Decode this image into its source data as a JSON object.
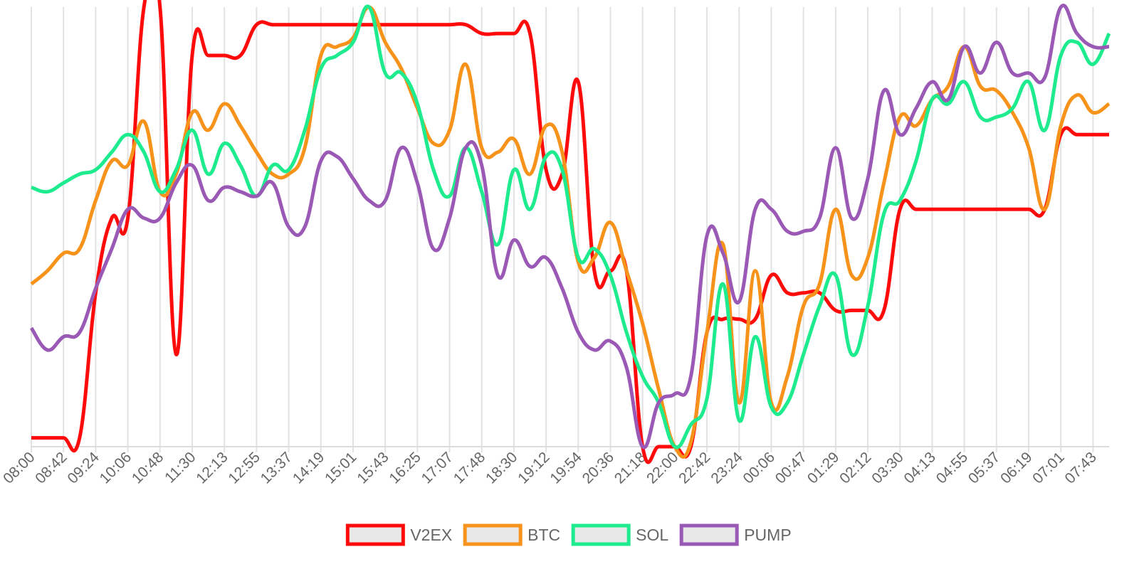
{
  "chart_data": {
    "type": "line",
    "categories": [
      "08:00",
      null,
      "08:42",
      null,
      "09:24",
      null,
      "10:06",
      null,
      "10:48",
      null,
      "11:30",
      null,
      "12:13",
      null,
      "12:55",
      null,
      "13:37",
      null,
      "14:19",
      null,
      "15:01",
      null,
      "15:43",
      null,
      "16:25",
      null,
      "17:07",
      null,
      "17:48",
      null,
      "18:30",
      null,
      "19:12",
      null,
      "19:54",
      null,
      "20:36",
      null,
      "21:18",
      null,
      "22:00",
      null,
      "22:42",
      null,
      "23:24",
      null,
      "00:06",
      null,
      "00:47",
      null,
      "01:29",
      null,
      "02:12",
      null,
      "03:30",
      null,
      "04:13",
      null,
      "04:55",
      null,
      "05:37",
      null,
      "06:19",
      null,
      "07:01",
      null,
      "07:43",
      null
    ],
    "ylim": [
      0,
      100
    ],
    "grid": true,
    "legend": "bottom",
    "series": [
      {
        "name": "V2EX",
        "color": "#ff0a0a",
        "values": [
          2,
          2,
          2,
          2,
          35,
          52,
          52,
          100,
          100,
          21,
          89,
          89,
          89,
          89,
          96,
          96,
          96,
          96,
          96,
          96,
          96,
          96,
          96,
          96,
          96,
          96,
          96,
          96,
          94,
          94,
          94,
          94,
          63,
          62,
          83,
          40,
          40,
          40,
          0,
          0,
          0,
          0,
          26,
          29,
          29,
          29,
          39,
          35,
          35,
          35,
          31,
          31,
          31,
          31,
          54,
          54,
          54,
          54,
          54,
          54,
          54,
          54,
          54,
          54,
          71,
          71,
          71,
          71
        ]
      },
      {
        "name": "BTC",
        "color": "#f7931a",
        "values": [
          37,
          40,
          44,
          45,
          56,
          65,
          64,
          74,
          58,
          62,
          76,
          72,
          78,
          73,
          67,
          62,
          62,
          68,
          89,
          91,
          93,
          100,
          92,
          86,
          77,
          69,
          72,
          87,
          68,
          67,
          70,
          62,
          73,
          67,
          42,
          43,
          51,
          40,
          28,
          13,
          0,
          1,
          26,
          46,
          10,
          40,
          10,
          16,
          32,
          37,
          54,
          39,
          43,
          60,
          75,
          73,
          79,
          82,
          91,
          82,
          81,
          76,
          68,
          54,
          73,
          80,
          76,
          78
        ]
      },
      {
        "name": "SOL",
        "color": "#1deb8e",
        "values": [
          59,
          58,
          60,
          62,
          63,
          67,
          71,
          67,
          58,
          63,
          72,
          62,
          69,
          64,
          57,
          64,
          63,
          72,
          86,
          89,
          92,
          100,
          85,
          85,
          78,
          63,
          57,
          68,
          58,
          46,
          63,
          54,
          66,
          63,
          43,
          45,
          39,
          26,
          16,
          10,
          0,
          5,
          11,
          37,
          6,
          25,
          9,
          10,
          21,
          32,
          39,
          21,
          32,
          53,
          56,
          65,
          79,
          78,
          83,
          75,
          75,
          77,
          83,
          72,
          89,
          92,
          87,
          94
        ]
      },
      {
        "name": "PUMP",
        "color": "#9b59b6",
        "values": [
          27,
          22,
          25,
          26,
          36,
          45,
          54,
          52,
          52,
          60,
          64,
          56,
          59,
          58,
          57,
          60,
          50,
          50,
          65,
          66,
          61,
          56,
          56,
          68,
          60,
          45,
          52,
          68,
          64,
          39,
          47,
          41,
          43,
          36,
          26,
          22,
          24,
          18,
          0,
          10,
          12,
          16,
          48,
          44,
          33,
          54,
          54,
          49,
          49,
          52,
          68,
          52,
          61,
          81,
          71,
          77,
          83,
          79,
          91,
          85,
          92,
          85,
          85,
          84,
          100,
          94,
          91,
          91
        ]
      }
    ]
  }
}
